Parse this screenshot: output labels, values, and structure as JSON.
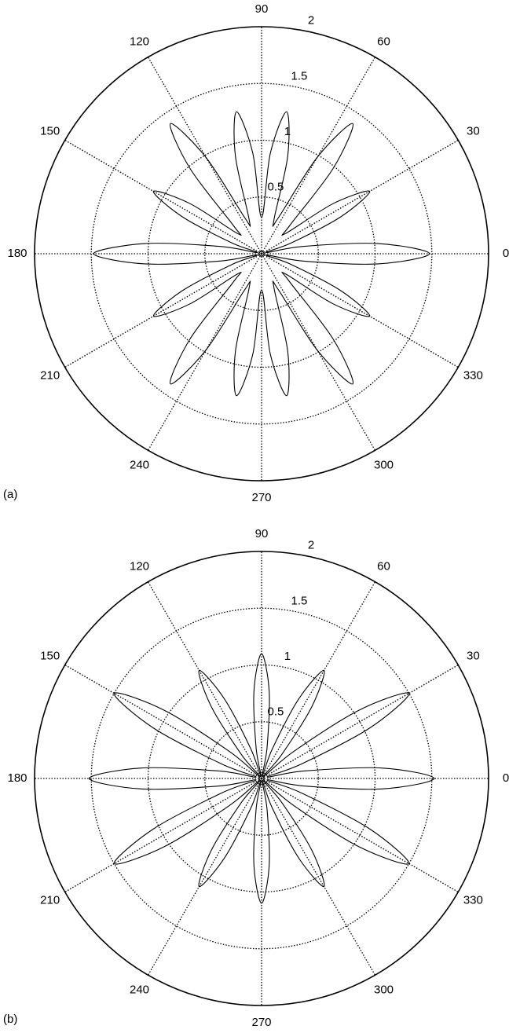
{
  "chart_data": [
    {
      "type": "polar",
      "panel_label": "(a)",
      "color": "#000000",
      "grid": true,
      "rlim": [
        0,
        2
      ],
      "rticks": [
        0.5,
        1,
        1.5,
        2
      ],
      "thetaticks": [
        0,
        30,
        60,
        90,
        120,
        150,
        180,
        210,
        240,
        270,
        300,
        330
      ],
      "theta": [
        0,
        5,
        10,
        15,
        20,
        25,
        30,
        35,
        40,
        45,
        50,
        55,
        60,
        65,
        70,
        75,
        80,
        85,
        90,
        95,
        100,
        105,
        110,
        115,
        120,
        125,
        130,
        135,
        140,
        145,
        150,
        155,
        160,
        165,
        170,
        175,
        180,
        185,
        190,
        195,
        200,
        205,
        210,
        215,
        220,
        225,
        230,
        235,
        240,
        245,
        250,
        255,
        260,
        265,
        270,
        275,
        280,
        285,
        290,
        295,
        300,
        305,
        310,
        315,
        320,
        325,
        330,
        335,
        340,
        345,
        350,
        355
      ],
      "values": [
        1.48,
        1.03,
        0.37,
        0.04,
        0.28,
        0.77,
        1.1,
        0.77,
        0.28,
        0.35,
        0.98,
        1.4,
        0.98,
        0.35,
        0.32,
        0.89,
        1.27,
        0.89,
        0.32,
        0.89,
        1.27,
        0.89,
        0.32,
        0.35,
        0.98,
        1.4,
        0.98,
        0.35,
        0.28,
        0.77,
        1.1,
        0.77,
        0.28,
        0.04,
        0.37,
        1.03,
        1.48,
        1.03,
        0.37,
        0.04,
        0.28,
        0.77,
        1.1,
        0.77,
        0.28,
        0.35,
        0.98,
        1.4,
        0.98,
        0.35,
        0.32,
        0.89,
        1.27,
        0.89,
        0.32,
        0.89,
        1.27,
        0.89,
        0.32,
        0.35,
        0.98,
        1.4,
        0.98,
        0.35,
        0.28,
        0.77,
        1.1,
        0.77,
        0.28,
        0.04,
        0.37,
        1.03
      ]
    },
    {
      "type": "polar",
      "panel_label": "(b)",
      "color": "#000000",
      "grid": true,
      "rlim": [
        0,
        2
      ],
      "rticks": [
        0.5,
        1,
        1.5,
        2
      ],
      "thetaticks": [
        0,
        30,
        60,
        90,
        120,
        150,
        180,
        210,
        240,
        270,
        300,
        330
      ],
      "theta": [
        0,
        5,
        10,
        15,
        20,
        25,
        30,
        35,
        40,
        45,
        50,
        55,
        60,
        65,
        70,
        75,
        80,
        85,
        90,
        95,
        100,
        105,
        110,
        115,
        120,
        125,
        130,
        135,
        140,
        145,
        150,
        155,
        160,
        165,
        170,
        175,
        180,
        185,
        190,
        195,
        200,
        205,
        210,
        215,
        220,
        225,
        230,
        235,
        240,
        245,
        250,
        255,
        260,
        265,
        270,
        275,
        280,
        285,
        290,
        295,
        300,
        305,
        310,
        315,
        320,
        325,
        330,
        335,
        340,
        345,
        350,
        355
      ],
      "values": [
        1.52,
        1.06,
        0.38,
        0.05,
        0.375,
        1.05,
        1.5,
        1.05,
        0.375,
        0.03,
        0.28,
        0.77,
        1.1,
        0.77,
        0.28,
        0.03,
        0.28,
        0.77,
        1.1,
        0.77,
        0.28,
        0.03,
        0.28,
        0.77,
        1.1,
        0.77,
        0.28,
        0.03,
        0.375,
        1.05,
        1.5,
        1.05,
        0.375,
        0.05,
        0.38,
        1.06,
        1.52,
        1.06,
        0.38,
        0.05,
        0.375,
        1.05,
        1.5,
        1.05,
        0.375,
        0.03,
        0.28,
        0.77,
        1.1,
        0.77,
        0.28,
        0.03,
        0.28,
        0.77,
        1.1,
        0.77,
        0.28,
        0.03,
        0.28,
        0.77,
        1.1,
        0.77,
        0.28,
        0.03,
        0.375,
        1.05,
        1.5,
        1.05,
        0.375,
        0.05,
        0.38,
        1.06
      ]
    }
  ]
}
